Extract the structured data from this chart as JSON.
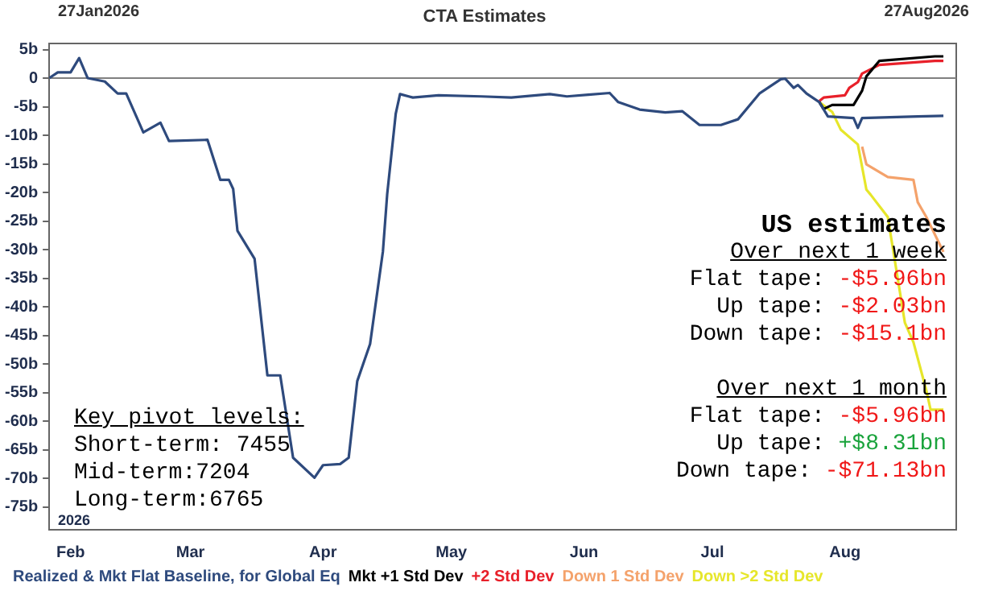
{
  "chart_data": {
    "type": "line",
    "title": "CTA Estimates",
    "xlim": [
      "2026-01-27",
      "2026-08-27"
    ],
    "xticks": [
      {
        "value": "2026-02-01",
        "label": "Feb"
      },
      {
        "value": "2026-03-01",
        "label": "Mar"
      },
      {
        "value": "2026-04-01",
        "label": "Apr"
      },
      {
        "value": "2026-05-01",
        "label": "May"
      },
      {
        "value": "2026-06-01",
        "label": "Jun"
      },
      {
        "value": "2026-07-01",
        "label": "Jul"
      },
      {
        "value": "2026-08-01",
        "label": "Aug"
      }
    ],
    "ylim": [
      -79,
      6
    ],
    "yticks": [
      {
        "value": 5,
        "label": "5b"
      },
      0,
      {
        "value": -5,
        "label": "-5b"
      },
      {
        "value": -10,
        "label": "-10b"
      },
      {
        "value": -15,
        "label": "-15b"
      },
      {
        "value": -20,
        "label": "-20b"
      },
      {
        "value": -25,
        "label": "-25b"
      },
      {
        "value": -30,
        "label": "-30b"
      },
      {
        "value": -35,
        "label": "-35b"
      },
      {
        "value": -40,
        "label": "-40b"
      },
      {
        "value": -45,
        "label": "-45b"
      },
      {
        "value": -50,
        "label": "-50b"
      },
      {
        "value": -55,
        "label": "-55b"
      },
      {
        "value": -60,
        "label": "-60b"
      },
      {
        "value": -65,
        "label": "-65b"
      },
      {
        "value": -70,
        "label": "-70b"
      },
      {
        "value": -75,
        "label": "-75b"
      }
    ],
    "grid": false,
    "legend": "bottom",
    "marker": "none",
    "line_style": "solid",
    "ref_lines": [
      {
        "axis": "y",
        "value": 0,
        "color": "#808080"
      }
    ],
    "series": [
      {
        "name": "Realized & Mkt Flat Baseline, for Global Eq",
        "color": "#2e4a7d",
        "x": [
          "2026-01-27",
          "2026-01-29",
          "2026-02-01",
          "2026-02-03",
          "2026-02-05",
          "2026-02-09",
          "2026-02-12",
          "2026-02-14",
          "2026-02-18",
          "2026-02-22",
          "2026-02-24",
          "2026-03-05",
          "2026-03-08",
          "2026-03-10",
          "2026-03-11",
          "2026-03-12",
          "2026-03-16",
          "2026-03-19",
          "2026-03-22",
          "2026-03-25",
          "2026-03-30",
          "2026-04-01",
          "2026-04-05",
          "2026-04-07",
          "2026-04-09",
          "2026-04-12",
          "2026-04-15",
          "2026-04-16",
          "2026-04-18",
          "2026-04-19",
          "2026-04-22",
          "2026-04-28",
          "2026-05-08",
          "2026-05-15",
          "2026-05-24",
          "2026-05-28",
          "2026-06-02",
          "2026-06-07",
          "2026-06-09",
          "2026-06-14",
          "2026-06-20",
          "2026-06-24",
          "2026-06-28",
          "2026-07-03",
          "2026-07-07",
          "2026-07-12",
          "2026-07-17",
          "2026-07-18",
          "2026-07-20",
          "2026-07-21",
          "2026-07-23",
          "2026-07-26",
          "2026-07-28",
          "2026-08-03",
          "2026-08-04",
          "2026-08-05",
          "2026-08-18",
          "2026-08-24"
        ],
        "values": [
          0,
          1,
          1,
          3.5,
          0,
          -0.6,
          -2.7,
          -2.7,
          -9.5,
          -7.8,
          -11,
          -10.8,
          -17.8,
          -17.8,
          -19.4,
          -26.7,
          -31.6,
          -52,
          -52,
          -66.4,
          -69.9,
          -67.7,
          -67.5,
          -66.4,
          -53,
          -46.5,
          -30.3,
          -20.3,
          -6.2,
          -2.8,
          -3.4,
          -3,
          -3.2,
          -3.4,
          -2.8,
          -3.2,
          -2.9,
          -2.6,
          -4.2,
          -5.5,
          -6,
          -5.8,
          -8.2,
          -8.2,
          -7.2,
          -2.7,
          -0.2,
          -0.1,
          -1.7,
          -1.2,
          -2.7,
          -4.2,
          -6.7,
          -7,
          -8.7,
          -7,
          -6.7,
          -6.6
        ]
      },
      {
        "name": "Mkt +1 Std Dev",
        "color": "#000000",
        "x": [
          "2026-07-26",
          "2026-07-27",
          "2026-07-29",
          "2026-08-03",
          "2026-08-05",
          "2026-08-06",
          "2026-08-09",
          "2026-08-22",
          "2026-08-24"
        ],
        "values": [
          -4.2,
          -5.4,
          -4.7,
          -4.7,
          -2.2,
          0.3,
          3,
          3.8,
          3.8
        ]
      },
      {
        "name": "+2 Std Dev",
        "color": "#e8202a",
        "x": [
          "2026-07-26",
          "2026-07-27",
          "2026-08-01",
          "2026-08-02",
          "2026-08-04",
          "2026-08-05",
          "2026-08-09",
          "2026-08-22",
          "2026-08-24"
        ],
        "values": [
          -4,
          -3.4,
          -3,
          -1.7,
          -0.7,
          0.8,
          2.3,
          3,
          3
        ]
      },
      {
        "name": "Down 1 Std Dev",
        "color": "#f4a26b",
        "x": [
          "2026-08-05",
          "2026-08-06",
          "2026-08-11",
          "2026-08-17",
          "2026-08-18",
          "2026-08-20",
          "2026-08-24"
        ],
        "values": [
          -12,
          -15.1,
          -17.3,
          -17.8,
          -21.7,
          -24.3,
          -30.4
        ]
      },
      {
        "name": "Down >2 Std Dev",
        "color": "#e6e62a",
        "x": [
          "2026-07-26",
          "2026-07-29",
          "2026-07-31",
          "2026-08-04",
          "2026-08-06",
          "2026-08-07",
          "2026-08-11",
          "2026-08-15",
          "2026-08-17",
          "2026-08-20",
          "2026-08-21",
          "2026-08-24"
        ],
        "values": [
          -4.2,
          -5.9,
          -9,
          -11.6,
          -19.5,
          -20.4,
          -24.3,
          -42.8,
          -46.2,
          -54.6,
          -58,
          -58
        ]
      }
    ],
    "annotations": [
      "US estimates",
      "Over next 1 week",
      "Flat tape: -$5.96bn",
      "Up tape: -$2.03bn",
      "Down tape: -$15.1bn",
      "Over next 1 month",
      "Flat tape: -$5.96bn",
      "Up tape: +$8.31bn",
      "Down tape: -$71.13bn",
      "Key pivot levels:",
      "Short-term: 7455",
      "Mid-term:7204",
      "Long-term:6765",
      "27Jan2026",
      "27Aug2026",
      "2026"
    ]
  }
}
